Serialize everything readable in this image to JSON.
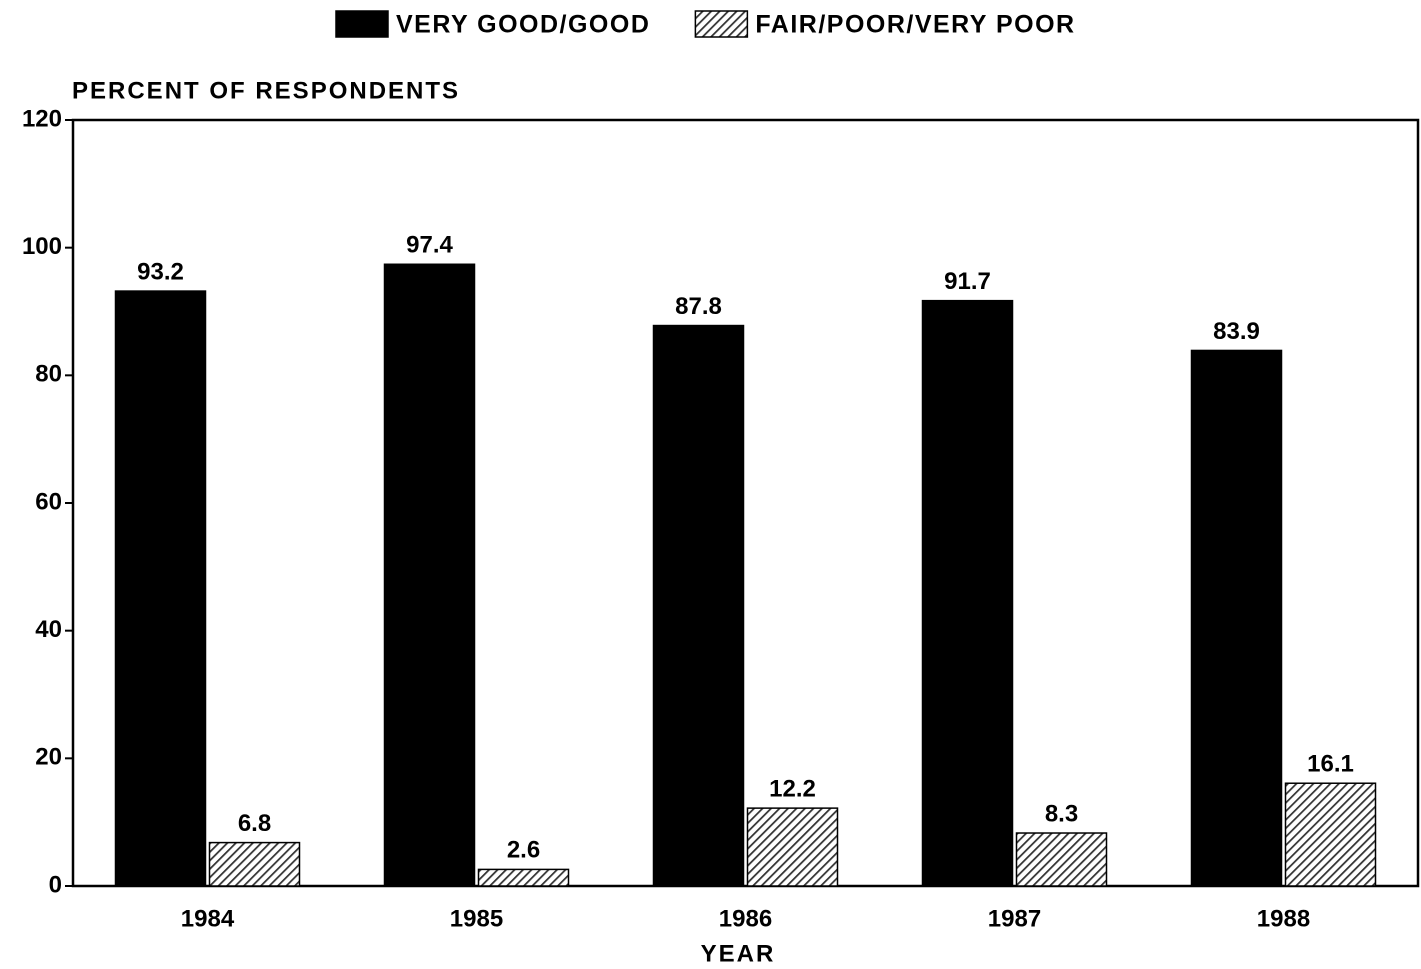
{
  "chart_data": {
    "type": "bar",
    "y_axis_label": "PERCENT OF RESPONDENTS",
    "x_axis_label": "YEAR",
    "categories": [
      "1984",
      "1985",
      "1986",
      "1987",
      "1988"
    ],
    "series": [
      {
        "name": "VERY GOOD/GOOD",
        "color": "#000000",
        "values": [
          93.2,
          97.4,
          87.8,
          91.7,
          83.9
        ]
      },
      {
        "name": "FAIR/POOR/VERY POOR",
        "color": "#333333",
        "values": [
          6.8,
          2.6,
          12.2,
          8.3,
          16.1
        ]
      }
    ],
    "ylim": [
      0,
      120
    ],
    "yticks": [
      0,
      20,
      40,
      60,
      80,
      100,
      120
    ],
    "legend": "top"
  }
}
